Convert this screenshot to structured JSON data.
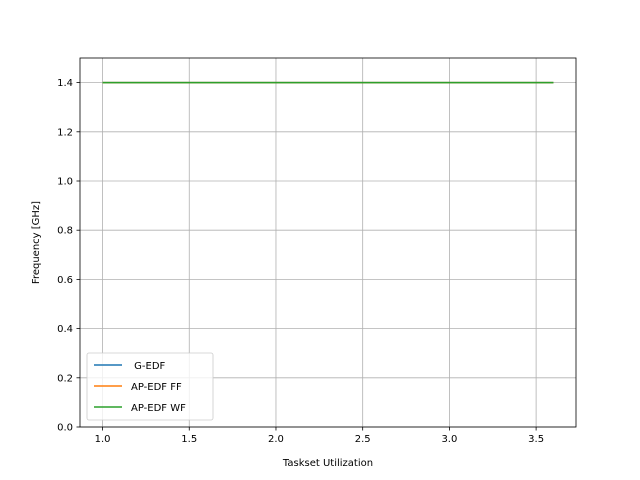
{
  "chart_data": {
    "type": "line",
    "title": "",
    "xlabel": "Taskset Utilization",
    "ylabel": "Frequency [GHz]",
    "xlim": [
      0.87,
      3.73
    ],
    "ylim": [
      0.0,
      1.5
    ],
    "xticks": [
      1.0,
      1.5,
      2.0,
      2.5,
      3.0,
      3.5
    ],
    "xtick_labels": [
      "1.0",
      "1.5",
      "2.0",
      "2.5",
      "3.0",
      "3.5"
    ],
    "yticks": [
      0.0,
      0.2,
      0.4,
      0.6,
      0.8,
      1.0,
      1.2,
      1.4
    ],
    "ytick_labels": [
      "0.0",
      "0.2",
      "0.4",
      "0.6",
      "0.8",
      "1.0",
      "1.2",
      "1.4"
    ],
    "grid": true,
    "legend_position": "lower-left",
    "x": [
      1.0,
      1.2,
      1.4,
      1.6,
      1.8,
      2.0,
      2.2,
      2.4,
      2.6,
      2.8,
      3.0,
      3.2,
      3.4,
      3.6
    ],
    "series": [
      {
        "name": " G-EDF",
        "color": "#1f77b4",
        "values": [
          1.4,
          1.4,
          1.4,
          1.4,
          1.4,
          1.4,
          1.4,
          1.4,
          1.4,
          1.4,
          1.4,
          1.4,
          1.4,
          1.4
        ]
      },
      {
        "name": "AP-EDF FF",
        "color": "#ff7f0e",
        "values": [
          1.4,
          1.4,
          1.4,
          1.4,
          1.4,
          1.4,
          1.4,
          1.4,
          1.4,
          1.4,
          1.4,
          1.4,
          1.4,
          1.4
        ]
      },
      {
        "name": "AP-EDF WF",
        "color": "#2ca02c",
        "values": [
          1.4,
          1.4,
          1.4,
          1.4,
          1.4,
          1.4,
          1.4,
          1.4,
          1.4,
          1.4,
          1.4,
          1.4,
          1.4,
          1.4
        ]
      }
    ]
  }
}
